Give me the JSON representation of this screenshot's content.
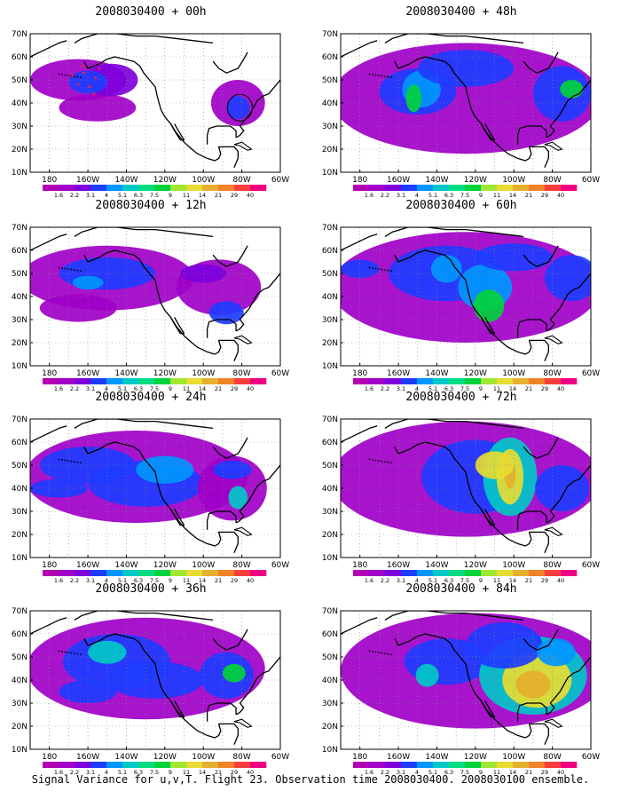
{
  "panels": [
    {
      "title": "2008030400 + 00h",
      "lead": 0
    },
    {
      "title": "2008030400 + 48h",
      "lead": 48
    },
    {
      "title": "2008030400 + 12h",
      "lead": 12
    },
    {
      "title": "2008030400 + 60h",
      "lead": 60
    },
    {
      "title": "2008030400 + 24h",
      "lead": 24
    },
    {
      "title": "2008030400 + 72h",
      "lead": 72
    },
    {
      "title": "2008030400 + 36h",
      "lead": 36
    },
    {
      "title": "2008030400 + 84h",
      "lead": 84
    }
  ],
  "axes": {
    "lon_labels": [
      "180",
      "160W",
      "140W",
      "120W",
      "100W",
      "80W",
      "60W"
    ],
    "lat_labels": [
      "10N",
      "20N",
      "30N",
      "40N",
      "50N",
      "60N",
      "70N"
    ],
    "lon_range": [
      170,
      300
    ],
    "lat_range": [
      10,
      70
    ]
  },
  "colorbar": {
    "labels": [
      "1.6",
      "2.2",
      "3.1",
      "4",
      "5.1",
      "6.3",
      "7.5",
      "9",
      "11",
      "14",
      "21",
      "29",
      "40"
    ],
    "colors": [
      "#a000c8",
      "#7d00dc",
      "#1e3cff",
      "#0096ff",
      "#00c8c8",
      "#00dc82",
      "#00d23c",
      "#a0e632",
      "#e6dc32",
      "#e6af2d",
      "#f08228",
      "#fa3c3c",
      "#f00082"
    ]
  },
  "footer": "Signal Variance for u,v,T. Flight 23. Observation time 2008030400. 2008030100 ensemble."
}
